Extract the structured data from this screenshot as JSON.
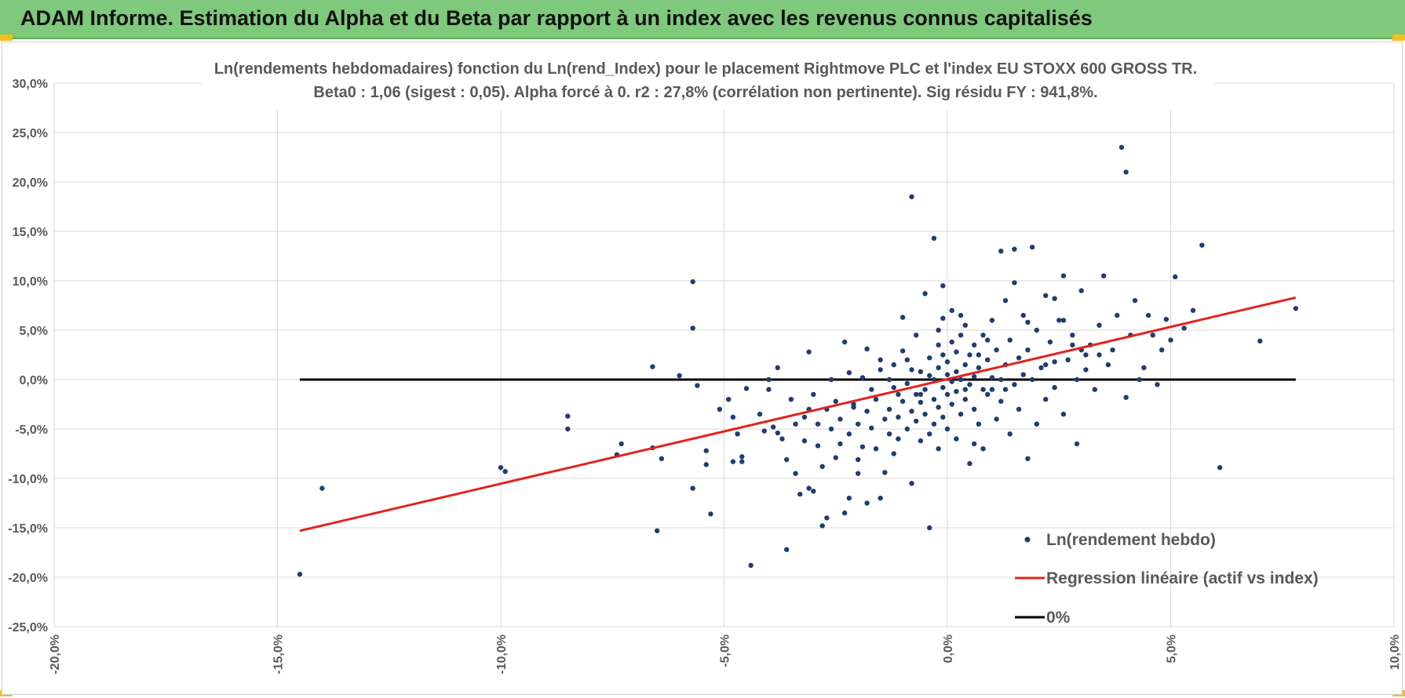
{
  "banner": {
    "title": "ADAM Informe. Estimation du Alpha et du Beta par rapport à un index avec les revenus connus capitalisés"
  },
  "colors": {
    "banner": "#7ec97b",
    "points": "#1f3d73",
    "regression": "#e3231e",
    "zero_line": "#000000",
    "grid": "#d9d9d9"
  },
  "chart_data": {
    "type": "scatter",
    "title_line1": "Ln(rendements hebdomadaires) fonction du Ln(rend_Index) pour le placement Rightmove PLC et l'index EU STOXX 600 GROSS TR.",
    "title_line2": "Beta0 : 1,06 (sigest : 0,05).  Alpha forcé à 0. r2 : 27,8% (corrélation non pertinente). Sig résidu FY : 941,8%.",
    "xlabel": "",
    "ylabel": "",
    "xlim": [
      -0.2,
      0.1
    ],
    "ylim": [
      -0.25,
      0.3
    ],
    "x_ticks": [
      -0.2,
      -0.15,
      -0.1,
      -0.05,
      0.0,
      0.05,
      0.1
    ],
    "x_tick_labels": [
      "-20,0%",
      "-15,0%",
      "-10,0%",
      "-5,0%",
      "0,0%",
      "5,0%",
      "10,0%"
    ],
    "y_ticks": [
      -0.25,
      -0.2,
      -0.15,
      -0.1,
      -0.05,
      0.0,
      0.05,
      0.1,
      0.15,
      0.2,
      0.25,
      0.3
    ],
    "y_tick_labels": [
      "-25,0%",
      "-20,0%",
      "-15,0%",
      "-10,0%",
      "-5,0%",
      "0,0%",
      "5,0%",
      "10,0%",
      "15,0%",
      "20,0%",
      "25,0%",
      "30,0%"
    ],
    "grid": true,
    "legend_position": "bottom-right",
    "series": [
      {
        "name": "Ln(rendement hebdo)",
        "kind": "scatter",
        "points": [
          [
            -0.145,
            -0.197
          ],
          [
            -0.14,
            -0.11
          ],
          [
            -0.1,
            -0.089
          ],
          [
            -0.099,
            -0.093
          ],
          [
            -0.085,
            -0.037
          ],
          [
            -0.085,
            -0.05
          ],
          [
            -0.074,
            -0.076
          ],
          [
            -0.073,
            -0.065
          ],
          [
            -0.066,
            0.013
          ],
          [
            -0.066,
            -0.069
          ],
          [
            -0.065,
            -0.153
          ],
          [
            -0.064,
            -0.08
          ],
          [
            -0.06,
            0.004
          ],
          [
            -0.057,
            0.099
          ],
          [
            -0.057,
            0.052
          ],
          [
            -0.057,
            -0.11
          ],
          [
            -0.056,
            -0.006
          ],
          [
            -0.054,
            -0.072
          ],
          [
            -0.054,
            -0.086
          ],
          [
            -0.053,
            -0.136
          ],
          [
            -0.051,
            -0.03
          ],
          [
            -0.049,
            -0.02
          ],
          [
            -0.048,
            -0.038
          ],
          [
            -0.047,
            -0.055
          ],
          [
            -0.046,
            -0.078
          ],
          [
            -0.046,
            -0.083
          ],
          [
            -0.045,
            -0.009
          ],
          [
            -0.044,
            -0.188
          ],
          [
            -0.042,
            -0.035
          ],
          [
            -0.041,
            -0.052
          ],
          [
            -0.04,
            0.0
          ],
          [
            -0.039,
            -0.048
          ],
          [
            -0.038,
            -0.054
          ],
          [
            -0.038,
            0.012
          ],
          [
            -0.037,
            -0.06
          ],
          [
            -0.036,
            -0.081
          ],
          [
            -0.036,
            -0.172
          ],
          [
            -0.035,
            -0.02
          ],
          [
            -0.034,
            -0.045
          ],
          [
            -0.034,
            -0.095
          ],
          [
            -0.033,
            -0.116
          ],
          [
            -0.032,
            -0.062
          ],
          [
            -0.032,
            -0.038
          ],
          [
            -0.031,
            -0.11
          ],
          [
            -0.031,
            -0.03
          ],
          [
            -0.03,
            -0.113
          ],
          [
            -0.03,
            -0.015
          ],
          [
            -0.029,
            -0.045
          ],
          [
            -0.029,
            -0.067
          ],
          [
            -0.028,
            -0.088
          ],
          [
            -0.028,
            -0.148
          ],
          [
            -0.027,
            -0.03
          ],
          [
            -0.026,
            0.0
          ],
          [
            -0.026,
            -0.05
          ],
          [
            -0.025,
            -0.079
          ],
          [
            -0.025,
            -0.022
          ],
          [
            -0.024,
            -0.065
          ],
          [
            -0.024,
            -0.04
          ],
          [
            -0.023,
            -0.135
          ],
          [
            -0.023,
            0.038
          ],
          [
            -0.022,
            -0.055
          ],
          [
            -0.022,
            -0.12
          ],
          [
            -0.022,
            0.007
          ],
          [
            -0.021,
            -0.025
          ],
          [
            -0.021,
            -0.028
          ],
          [
            -0.02,
            -0.081
          ],
          [
            -0.02,
            -0.045
          ],
          [
            -0.019,
            0.002
          ],
          [
            -0.019,
            -0.068
          ],
          [
            -0.018,
            -0.032
          ],
          [
            -0.018,
            -0.125
          ],
          [
            -0.018,
            0.031
          ],
          [
            -0.017,
            -0.01
          ],
          [
            -0.017,
            -0.049
          ],
          [
            -0.016,
            -0.07
          ],
          [
            -0.016,
            -0.02
          ],
          [
            -0.015,
            -0.12
          ],
          [
            -0.015,
            0.02
          ],
          [
            -0.014,
            -0.094
          ],
          [
            -0.014,
            -0.04
          ],
          [
            -0.013,
            -0.055
          ],
          [
            -0.013,
            0.0
          ],
          [
            -0.013,
            -0.03
          ],
          [
            -0.012,
            -0.075
          ],
          [
            -0.012,
            0.015
          ],
          [
            -0.011,
            -0.015
          ],
          [
            -0.011,
            -0.06
          ],
          [
            -0.011,
            -0.038
          ],
          [
            -0.01,
            0.029
          ],
          [
            -0.01,
            0.063
          ],
          [
            -0.01,
            -0.022
          ],
          [
            -0.009,
            -0.05
          ],
          [
            -0.009,
            -0.004
          ],
          [
            -0.008,
            -0.105
          ],
          [
            -0.008,
            -0.032
          ],
          [
            -0.008,
            0.01
          ],
          [
            -0.007,
            0.045
          ],
          [
            -0.007,
            -0.015
          ],
          [
            -0.007,
            -0.042
          ],
          [
            -0.006,
            0.008
          ],
          [
            -0.006,
            -0.062
          ],
          [
            -0.006,
            -0.023
          ],
          [
            -0.005,
            0.087
          ],
          [
            -0.005,
            -0.01
          ],
          [
            -0.005,
            -0.035
          ],
          [
            -0.004,
            0.004
          ],
          [
            -0.004,
            -0.15
          ],
          [
            -0.004,
            -0.055
          ],
          [
            -0.004,
            0.022
          ],
          [
            -0.003,
            -0.02
          ],
          [
            -0.003,
            -0.045
          ],
          [
            -0.003,
            0.0
          ],
          [
            -0.002,
            0.035
          ],
          [
            -0.002,
            -0.028
          ],
          [
            -0.002,
            -0.07
          ],
          [
            -0.002,
            0.012
          ],
          [
            -0.001,
            -0.008
          ],
          [
            -0.001,
            0.062
          ],
          [
            -0.001,
            -0.038
          ],
          [
            -0.001,
            0.025
          ],
          [
            0.0,
            -0.015
          ],
          [
            0.0,
            0.005
          ],
          [
            0.0,
            -0.05
          ],
          [
            0.0,
            0.018
          ],
          [
            0.001,
            -0.002
          ],
          [
            0.001,
            0.038
          ],
          [
            0.001,
            -0.025
          ],
          [
            0.001,
            0.07
          ],
          [
            0.002,
            0.008
          ],
          [
            0.002,
            -0.06
          ],
          [
            0.002,
            -0.012
          ],
          [
            0.002,
            0.028
          ],
          [
            0.003,
            0.0
          ],
          [
            0.003,
            -0.035
          ],
          [
            0.003,
            0.045
          ],
          [
            0.004,
            0.015
          ],
          [
            0.004,
            -0.02
          ],
          [
            0.004,
            0.055
          ],
          [
            0.005,
            -0.005
          ],
          [
            0.005,
            -0.085
          ],
          [
            0.005,
            0.025
          ],
          [
            0.006,
            0.003
          ],
          [
            0.006,
            -0.03
          ],
          [
            0.006,
            0.035
          ],
          [
            0.007,
            -0.045
          ],
          [
            0.007,
            0.012
          ],
          [
            0.008,
            -0.01
          ],
          [
            0.008,
            0.045
          ],
          [
            0.008,
            -0.07
          ],
          [
            0.009,
            0.02
          ],
          [
            0.009,
            -0.015
          ],
          [
            0.01,
            0.06
          ],
          [
            0.01,
            0.002
          ],
          [
            0.011,
            -0.04
          ],
          [
            0.011,
            0.03
          ],
          [
            0.012,
            0.0
          ],
          [
            0.012,
            -0.022
          ],
          [
            0.013,
            0.08
          ],
          [
            0.013,
            0.015
          ],
          [
            0.014,
            -0.055
          ],
          [
            0.014,
            0.04
          ],
          [
            0.015,
            -0.005
          ],
          [
            0.015,
            0.132
          ],
          [
            0.016,
            0.022
          ],
          [
            0.016,
            -0.03
          ],
          [
            0.017,
            0.065
          ],
          [
            0.017,
            0.005
          ],
          [
            0.018,
            -0.08
          ],
          [
            0.018,
            0.03
          ],
          [
            0.019,
            0.0
          ],
          [
            0.019,
            0.134
          ],
          [
            0.02,
            -0.045
          ],
          [
            0.02,
            0.05
          ],
          [
            0.021,
            0.012
          ],
          [
            0.022,
            -0.02
          ],
          [
            0.022,
            0.085
          ],
          [
            0.023,
            0.038
          ],
          [
            0.024,
            -0.008
          ],
          [
            0.024,
            0.018
          ],
          [
            0.025,
            0.06
          ],
          [
            0.026,
            -0.035
          ],
          [
            0.026,
            0.105
          ],
          [
            0.027,
            0.02
          ],
          [
            0.028,
            0.045
          ],
          [
            0.029,
            -0.065
          ],
          [
            0.029,
            0.0
          ],
          [
            0.03,
            0.09
          ],
          [
            0.031,
            0.025
          ],
          [
            0.032,
            0.035
          ],
          [
            0.033,
            -0.01
          ],
          [
            0.034,
            0.055
          ],
          [
            0.035,
            0.105
          ],
          [
            0.036,
            0.015
          ],
          [
            0.037,
            0.03
          ],
          [
            0.038,
            0.065
          ],
          [
            0.039,
            0.235
          ],
          [
            0.04,
            0.21
          ],
          [
            0.04,
            -0.018
          ],
          [
            0.041,
            0.045
          ],
          [
            0.042,
            0.08
          ],
          [
            0.043,
            0.0
          ],
          [
            0.044,
            0.012
          ],
          [
            0.045,
            0.065
          ],
          [
            0.046,
            0.045
          ],
          [
            0.047,
            -0.005
          ],
          [
            0.048,
            0.03
          ],
          [
            0.049,
            0.061
          ],
          [
            0.05,
            0.04
          ],
          [
            0.051,
            0.104
          ],
          [
            0.053,
            0.052
          ],
          [
            0.055,
            0.07
          ],
          [
            0.057,
            0.136
          ],
          [
            0.061,
            -0.089
          ],
          [
            0.07,
            0.039
          ],
          [
            0.078,
            0.072
          ],
          [
            -0.008,
            0.185
          ],
          [
            -0.003,
            0.143
          ],
          [
            0.015,
            0.098
          ],
          [
            0.012,
            0.13
          ],
          [
            0.024,
            0.082
          ],
          [
            0.03,
            0.03
          ],
          [
            0.006,
            -0.065
          ],
          [
            -0.001,
            0.095
          ],
          [
            0.01,
            -0.01
          ],
          [
            0.009,
            0.04
          ],
          [
            0.003,
            0.065
          ],
          [
            0.018,
            0.058
          ],
          [
            -0.015,
            0.01
          ],
          [
            -0.02,
            -0.095
          ],
          [
            -0.027,
            -0.14
          ],
          [
            -0.031,
            0.028
          ],
          [
            -0.04,
            -0.01
          ],
          [
            -0.048,
            -0.083
          ],
          [
            0.022,
            0.015
          ],
          [
            0.026,
            0.06
          ],
          [
            0.028,
            0.035
          ],
          [
            0.031,
            0.01
          ],
          [
            0.034,
            0.025
          ],
          [
            0.007,
            0.025
          ],
          [
            0.004,
            -0.01
          ],
          [
            -0.002,
            0.05
          ],
          [
            -0.006,
            -0.015
          ],
          [
            -0.009,
            0.02
          ],
          [
            -0.012,
            -0.008
          ],
          [
            0.013,
            -0.01
          ]
        ]
      },
      {
        "name": "Regression linéaire (actif vs index)",
        "kind": "line",
        "points": [
          [
            -0.145,
            -0.153
          ],
          [
            0.078,
            0.083
          ]
        ]
      },
      {
        "name": "0%",
        "kind": "line",
        "points": [
          [
            -0.145,
            0.0
          ],
          [
            0.078,
            0.0
          ]
        ]
      }
    ]
  }
}
